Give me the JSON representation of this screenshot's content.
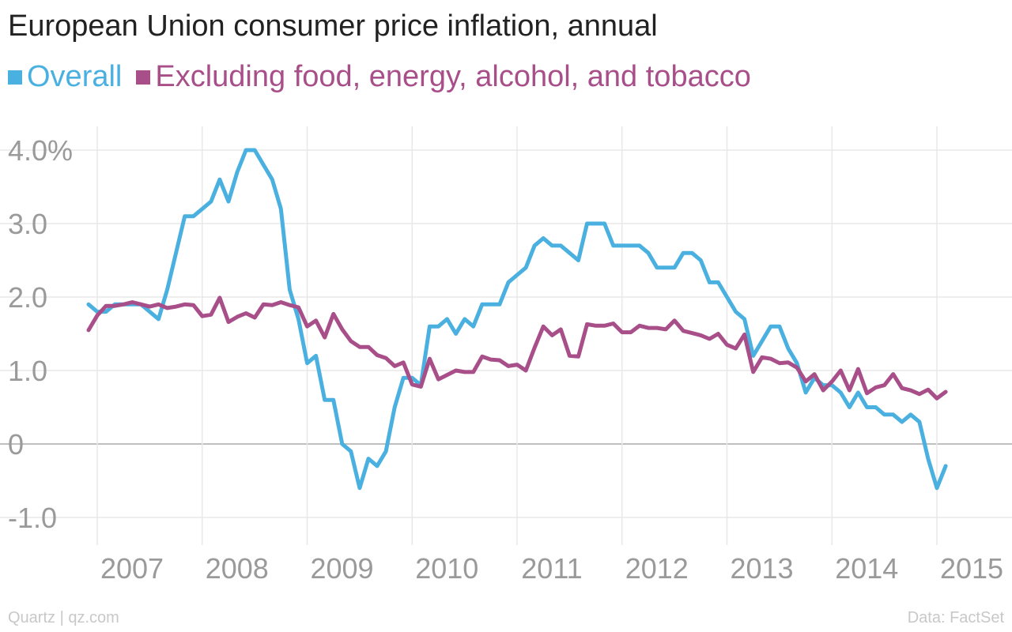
{
  "title": "European Union consumer price inflation, annual",
  "footer": {
    "source_left": "Quartz | qz.com",
    "source_right": "Data: FactSet"
  },
  "colors": {
    "overall": "#4ab0e0",
    "excluding": "#a84f8a",
    "grid": "#e8e8e8",
    "zero": "#aaaaaa",
    "axis_text": "#9a9a9a"
  },
  "chart_data": {
    "type": "line",
    "title": "European Union consumer price inflation, annual",
    "xlabel": "",
    "ylabel": "",
    "ylim": [
      -1.4,
      4.4
    ],
    "xlim": [
      2006.5,
      2015.2
    ],
    "y_ticks": [
      4.0,
      3.0,
      2.0,
      1.0,
      0,
      -1.0
    ],
    "y_tick_labels": [
      "4.0%",
      "3.0",
      "2.0",
      "1.0",
      "0",
      "-1.0"
    ],
    "x_ticks": [
      2007,
      2008,
      2009,
      2010,
      2011,
      2012,
      2013,
      2014,
      2015
    ],
    "x_tick_labels": [
      "2007",
      "2008",
      "2009",
      "2010",
      "2011",
      "2012",
      "2013",
      "2014",
      "2015"
    ],
    "legend_position": "top-left",
    "grid": true,
    "start": 2006.917,
    "step": 0.08333,
    "series": [
      {
        "name": "Overall",
        "color": "#4ab0e0",
        "values": [
          1.9,
          1.8,
          1.8,
          1.9,
          1.9,
          1.9,
          1.9,
          1.8,
          1.7,
          2.1,
          2.6,
          3.1,
          3.1,
          3.2,
          3.3,
          3.6,
          3.3,
          3.7,
          4.0,
          4.0,
          3.8,
          3.6,
          3.2,
          2.1,
          1.7,
          1.1,
          1.2,
          0.6,
          0.6,
          0.0,
          -0.1,
          -0.6,
          -0.2,
          -0.3,
          -0.1,
          0.5,
          0.9,
          0.9,
          0.8,
          1.6,
          1.6,
          1.7,
          1.5,
          1.7,
          1.6,
          1.9,
          1.9,
          1.9,
          2.2,
          2.3,
          2.4,
          2.7,
          2.8,
          2.7,
          2.7,
          2.6,
          2.5,
          3.0,
          3.0,
          3.0,
          2.7,
          2.7,
          2.7,
          2.7,
          2.6,
          2.4,
          2.4,
          2.4,
          2.6,
          2.6,
          2.5,
          2.2,
          2.2,
          2.0,
          1.8,
          1.7,
          1.2,
          1.4,
          1.6,
          1.6,
          1.3,
          1.1,
          0.7,
          0.9,
          0.8,
          0.8,
          0.7,
          0.5,
          0.7,
          0.5,
          0.5,
          0.4,
          0.4,
          0.3,
          0.4,
          0.3,
          -0.2,
          -0.6,
          -0.3
        ]
      },
      {
        "name": "Excluding food, energy, alcohol, and tobacco",
        "color": "#a84f8a",
        "values": [
          1.55,
          1.75,
          1.88,
          1.88,
          1.9,
          1.93,
          1.9,
          1.87,
          1.9,
          1.85,
          1.87,
          1.9,
          1.89,
          1.74,
          1.76,
          1.99,
          1.66,
          1.73,
          1.78,
          1.72,
          1.9,
          1.89,
          1.93,
          1.89,
          1.86,
          1.6,
          1.68,
          1.45,
          1.77,
          1.56,
          1.4,
          1.32,
          1.32,
          1.21,
          1.17,
          1.06,
          1.11,
          0.81,
          0.78,
          1.16,
          0.88,
          0.94,
          1.0,
          0.98,
          0.98,
          1.19,
          1.15,
          1.14,
          1.06,
          1.08,
          1.0,
          1.31,
          1.6,
          1.48,
          1.56,
          1.2,
          1.19,
          1.63,
          1.61,
          1.61,
          1.64,
          1.52,
          1.52,
          1.61,
          1.58,
          1.58,
          1.56,
          1.68,
          1.54,
          1.51,
          1.48,
          1.43,
          1.5,
          1.35,
          1.3,
          1.49,
          0.98,
          1.18,
          1.16,
          1.1,
          1.11,
          1.04,
          0.85,
          0.95,
          0.73,
          0.85,
          1.0,
          0.73,
          1.02,
          0.69,
          0.77,
          0.8,
          0.95,
          0.76,
          0.73,
          0.68,
          0.74,
          0.62,
          0.71
        ]
      }
    ]
  }
}
